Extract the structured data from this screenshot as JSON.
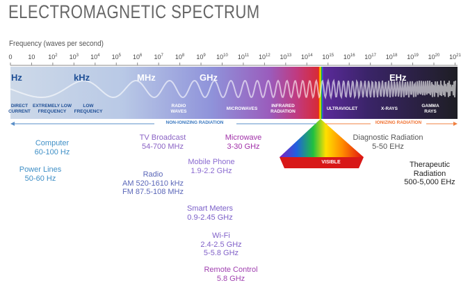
{
  "header": {
    "title": "ELECTROMAGNETIC SPECTRUM",
    "axis_label": "Frequency (waves per second)"
  },
  "ticks": [
    {
      "base": "0"
    },
    {
      "base": "10"
    },
    {
      "base": "10",
      "exp": "2"
    },
    {
      "base": "10",
      "exp": "3"
    },
    {
      "base": "10",
      "exp": "4"
    },
    {
      "base": "10",
      "exp": "5"
    },
    {
      "base": "10",
      "exp": "6"
    },
    {
      "base": "10",
      "exp": "7"
    },
    {
      "base": "10",
      "exp": "8"
    },
    {
      "base": "10",
      "exp": "9"
    },
    {
      "base": "10",
      "exp": "10"
    },
    {
      "base": "10",
      "exp": "11"
    },
    {
      "base": "10",
      "exp": "12"
    },
    {
      "base": "10",
      "exp": "13"
    },
    {
      "base": "10",
      "exp": "14"
    },
    {
      "base": "10",
      "exp": "15"
    },
    {
      "base": "10",
      "exp": "16"
    },
    {
      "base": "10",
      "exp": "17"
    },
    {
      "base": "10",
      "exp": "18"
    },
    {
      "base": "10",
      "exp": "19"
    },
    {
      "base": "10",
      "exp": "20"
    },
    {
      "base": "10",
      "exp": "21"
    }
  ],
  "units": [
    "Hz",
    "kHz",
    "MHz",
    "GHz",
    "EHz"
  ],
  "regions": [
    [
      "DIRECT",
      "CURRENT"
    ],
    [
      "EXTREMELY LOW",
      "FREQUENCY"
    ],
    [
      "LOW",
      "FREQUENCY"
    ],
    [
      "RADIO",
      "WAVES"
    ],
    [
      "MICROWAVES"
    ],
    [
      "INFRARED",
      "RADIATION"
    ],
    [
      "ULTRAVIOLET"
    ],
    [
      "X-RAYS"
    ],
    [
      "GAMMA",
      "RAYS"
    ]
  ],
  "radiation": {
    "non_ionizing": "NON-IONIZING RADIATION",
    "ionizing": "IONIZING RADIATION",
    "visible": "VISIBLE"
  },
  "applications": [
    {
      "name": "Computer",
      "lines": [
        "60-100 Hz"
      ]
    },
    {
      "name": "Power Lines",
      "lines": [
        "50-60 Hz"
      ]
    },
    {
      "name": "TV Broadcast",
      "lines": [
        "54-700 MHz"
      ]
    },
    {
      "name": "Radio",
      "lines": [
        "AM 520-1610 kHz",
        "FM 87.5-108 MHz"
      ]
    },
    {
      "name": "Microwave",
      "lines": [
        "3-30 GHz"
      ]
    },
    {
      "name": "Mobile Phone",
      "lines": [
        "1.9-2.2 GHz"
      ]
    },
    {
      "name": "Smart Meters",
      "lines": [
        "0.9-2.45 GHz"
      ]
    },
    {
      "name": "Wi-Fi",
      "lines": [
        "2.4-2.5 GHz",
        "5-5.8 GHz"
      ]
    },
    {
      "name": "Remote Control",
      "lines": [
        "5.8 GHz"
      ]
    },
    {
      "name": "Diagnostic Radiation",
      "lines": [
        "5-50 EHz"
      ]
    },
    {
      "name": "Therapeutic Radiation",
      "lines": [
        "500-5,000 EHz"
      ]
    }
  ]
}
